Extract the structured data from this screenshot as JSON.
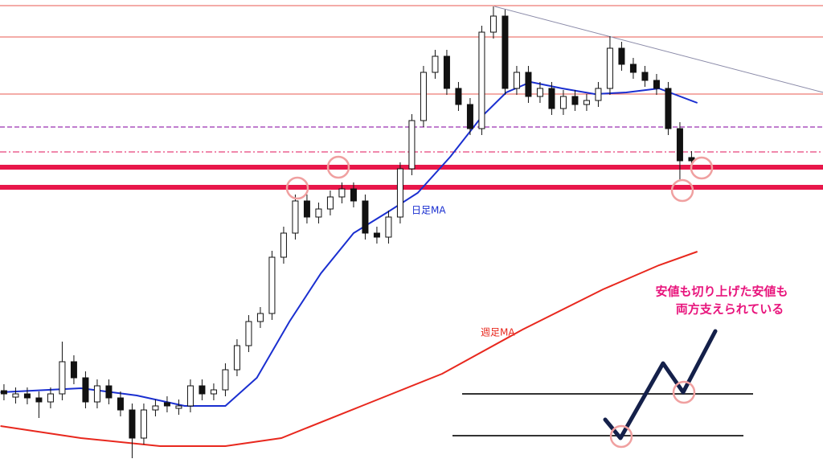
{
  "chart_data": {
    "type": "candlestick",
    "xlim": [
      -0.34,
      70.28
    ],
    "ylim": [
      0,
      576
    ],
    "open": [
      90,
      82,
      86,
      81,
      76,
      86,
      126,
      106,
      76,
      96,
      81,
      66,
      31,
      66,
      75,
      68,
      71,
      96,
      86,
      91,
      116,
      146,
      176,
      186,
      256,
      286,
      326,
      306,
      316,
      331,
      341,
      326,
      286,
      281,
      306,
      366,
      426,
      486,
      506,
      466,
      446,
      416,
      536,
      556,
      466,
      486,
      456,
      466,
      441,
      456,
      446,
      451,
      466,
      516,
      496,
      486,
      476,
      466,
      416,
      380
    ],
    "high": [
      98,
      94,
      94,
      89,
      94,
      151,
      134,
      114,
      104,
      104,
      89,
      74,
      74,
      79,
      83,
      79,
      104,
      104,
      99,
      124,
      154,
      184,
      194,
      264,
      294,
      334,
      334,
      324,
      339,
      349,
      349,
      334,
      294,
      314,
      374,
      434,
      494,
      514,
      514,
      474,
      454,
      544,
      568,
      564,
      494,
      494,
      474,
      474,
      464,
      464,
      459,
      474,
      531,
      524,
      504,
      494,
      484,
      474,
      424,
      388
    ],
    "low": [
      78,
      74,
      73,
      56,
      68,
      78,
      98,
      68,
      68,
      73,
      58,
      6,
      23,
      58,
      63,
      60,
      63,
      78,
      78,
      83,
      108,
      138,
      168,
      178,
      248,
      278,
      298,
      298,
      308,
      323,
      318,
      278,
      273,
      273,
      298,
      358,
      418,
      478,
      458,
      438,
      408,
      408,
      528,
      458,
      458,
      448,
      448,
      433,
      433,
      438,
      438,
      443,
      458,
      488,
      478,
      468,
      458,
      408,
      351,
      368
    ],
    "close": [
      86,
      86,
      81,
      76,
      86,
      126,
      106,
      76,
      96,
      81,
      66,
      31,
      66,
      71,
      71,
      71,
      96,
      86,
      91,
      116,
      146,
      176,
      186,
      256,
      286,
      326,
      306,
      316,
      331,
      341,
      326,
      286,
      281,
      306,
      366,
      426,
      486,
      506,
      466,
      446,
      416,
      536,
      556,
      466,
      486,
      456,
      466,
      441,
      456,
      446,
      451,
      466,
      516,
      496,
      486,
      476,
      466,
      416,
      376,
      376
    ],
    "series": [
      {
        "name": "日足MA",
        "color": "#1a2fd0",
        "x": [
          -0.3,
          6.6,
          11.4,
          15.5,
          19,
          21.7,
          24.5,
          27.2,
          30,
          32.8,
          35.5,
          38.3,
          41,
          43.1,
          45.2,
          47.9,
          50.7,
          53.4,
          56.2,
          59.5
        ],
        "values": [
          88,
          93,
          84,
          71,
          71,
          106,
          176,
          236,
          286,
          311,
          336,
          381,
          431,
          461,
          474,
          466,
          459,
          461,
          466,
          448
        ]
      },
      {
        "name": "週足MA",
        "color": "#e8281e",
        "x": [
          -0.3,
          6.6,
          13.4,
          19,
          23.8,
          30.7,
          37.6,
          44.5,
          51.4,
          56.2,
          59.5
        ],
        "values": [
          46,
          31,
          21,
          21,
          31,
          71,
          111,
          166,
          216,
          246,
          263
        ]
      }
    ],
    "hlines": [
      {
        "value": 569,
        "color": "#e85a50",
        "style": "thin"
      },
      {
        "value": 530,
        "color": "#e85a50",
        "style": "thin"
      },
      {
        "value": 459,
        "color": "#e85a50",
        "style": "thin"
      },
      {
        "value": 418,
        "color": "#9b30b0",
        "style": "dashed"
      },
      {
        "value": 387,
        "color": "#e8407a",
        "style": "dashdot"
      },
      {
        "value": 368,
        "color": "#e8174a",
        "style": "thick"
      },
      {
        "value": 343,
        "color": "#e8174a",
        "style": "thick"
      }
    ],
    "trendline": {
      "x": [
        42.1,
        70.3
      ],
      "values": [
        568,
        461
      ],
      "color": "#8a8aa8"
    },
    "annotation": [
      "安値も切り上げた安値も",
      "両方支えられている"
    ]
  }
}
